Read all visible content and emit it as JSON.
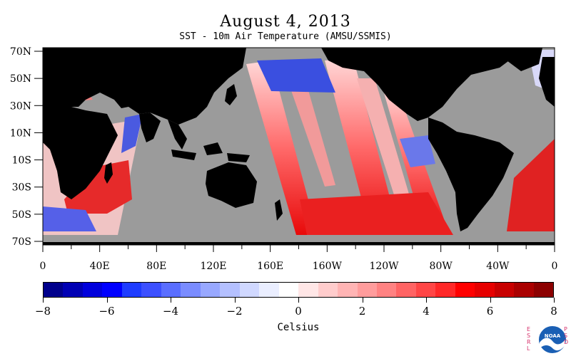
{
  "title": "August 4, 2013",
  "subtitle": "SST - 10m Air Temperature (AMSU/SSMIS)",
  "map": {
    "lat_labels": [
      "70N",
      "50N",
      "30N",
      "10N",
      "10S",
      "30S",
      "50S",
      "70S"
    ],
    "lon_labels": [
      "0",
      "40E",
      "80E",
      "120E",
      "160E",
      "160W",
      "120W",
      "80W",
      "40W",
      "0"
    ],
    "colors": {
      "land": "#000000",
      "no_data": "#9b9b9b",
      "warm": "#e8252b",
      "cool": "#3a4fe0"
    }
  },
  "colorbar": {
    "title": "Celsius",
    "tick_labels": [
      "−8",
      "−6",
      "−4",
      "−2",
      "0",
      "2",
      "4",
      "6",
      "8"
    ],
    "range": [
      -8,
      8
    ],
    "colors": [
      "#00008c",
      "#0000b4",
      "#0000dc",
      "#0000ff",
      "#1e3cff",
      "#3c50ff",
      "#5a6eff",
      "#7a8cff",
      "#98a8ff",
      "#b4c0ff",
      "#d0d8ff",
      "#eaeeff",
      "#ffffff",
      "#ffe6e6",
      "#ffcccc",
      "#ffb4b4",
      "#ff9c9c",
      "#ff8282",
      "#ff6464",
      "#ff4646",
      "#ff2828",
      "#ff0000",
      "#e60000",
      "#c80000",
      "#aa0000",
      "#8c0000"
    ]
  },
  "logo": {
    "name": "NOAA",
    "esrl": "ESRL",
    "psd": "PSD"
  }
}
